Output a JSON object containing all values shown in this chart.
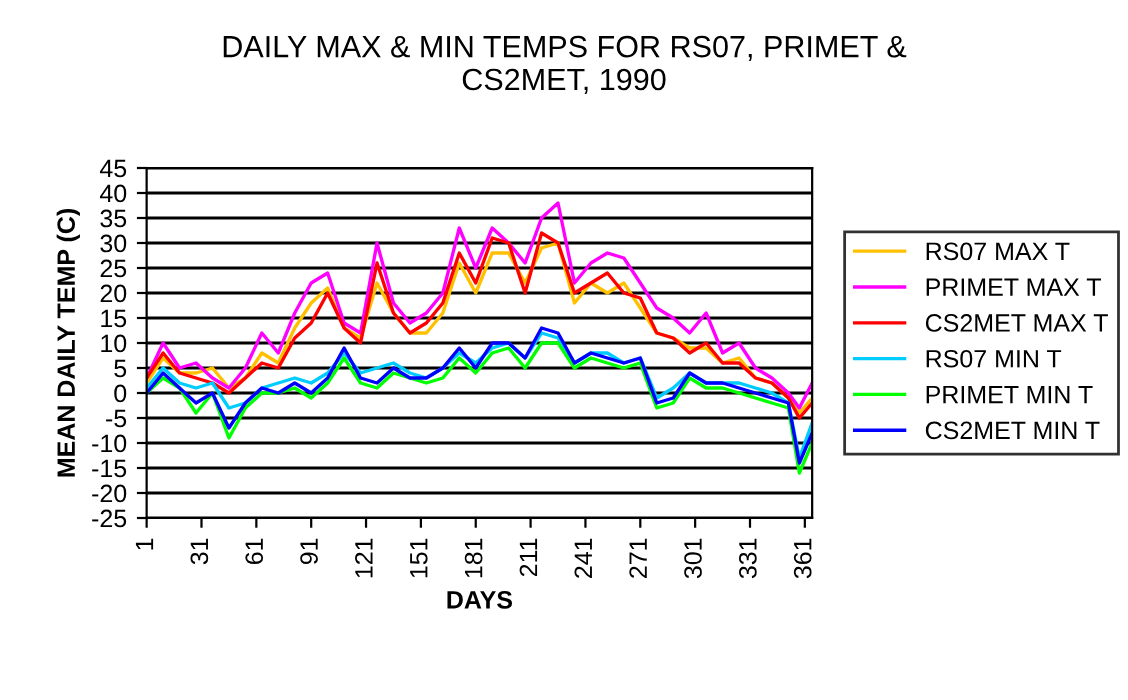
{
  "chart_data": {
    "type": "line",
    "title": "DAILY MAX & MIN TEMPS FOR RS07, PRIMET &\nCS2MET, 1990",
    "xlabel": "DAYS",
    "ylabel": "MEAN DAILY TEMP (C)",
    "x": [
      1,
      10,
      19,
      28,
      37,
      46,
      55,
      64,
      73,
      82,
      91,
      100,
      109,
      118,
      127,
      136,
      145,
      154,
      163,
      172,
      181,
      190,
      199,
      208,
      217,
      226,
      235,
      244,
      253,
      262,
      271,
      280,
      289,
      298,
      307,
      316,
      325,
      334,
      343,
      352,
      358,
      365
    ],
    "series": [
      {
        "name": "RS07 MAX T",
        "color": "#ffc000",
        "values": [
          2,
          7,
          4,
          4,
          5,
          1,
          3,
          8,
          6,
          13,
          18,
          21,
          13,
          11,
          22,
          16,
          12,
          12,
          16,
          26,
          20,
          28,
          28,
          22,
          29,
          30,
          18,
          22,
          20,
          22,
          17,
          12,
          11,
          9,
          9,
          6,
          7,
          3,
          2,
          -1,
          -4,
          -1
        ]
      },
      {
        "name": "PRIMET MAX T",
        "color": "#ff00ff",
        "values": [
          3,
          10,
          5,
          6,
          3,
          1,
          5,
          12,
          8,
          16,
          22,
          24,
          14,
          12,
          30,
          18,
          14,
          16,
          20,
          33,
          25,
          33,
          30,
          26,
          35,
          38,
          22,
          26,
          28,
          27,
          22,
          17,
          15,
          12,
          16,
          8,
          10,
          5,
          3,
          0,
          -3,
          2
        ]
      },
      {
        "name": "CS2MET MAX T",
        "color": "#ff0000",
        "values": [
          3,
          8,
          4,
          3,
          2,
          0,
          3,
          6,
          5,
          11,
          14,
          20,
          13,
          10,
          26,
          16,
          12,
          14,
          18,
          28,
          22,
          31,
          30,
          20,
          32,
          30,
          20,
          22,
          24,
          20,
          19,
          12,
          11,
          8,
          10,
          6,
          6,
          3,
          2,
          -1,
          -5,
          -2
        ]
      },
      {
        "name": "RS07 MIN T",
        "color": "#00ccff",
        "values": [
          1,
          5,
          2,
          1,
          2,
          -3,
          -2,
          1,
          2,
          3,
          2,
          4,
          8,
          4,
          5,
          6,
          4,
          3,
          5,
          8,
          6,
          9,
          10,
          7,
          12,
          11,
          6,
          8,
          8,
          6,
          7,
          -1,
          1,
          4,
          2,
          2,
          2,
          1,
          0,
          -2,
          -13,
          -6
        ]
      },
      {
        "name": "PRIMET MIN T",
        "color": "#00ff00",
        "values": [
          0,
          3,
          1,
          -4,
          0,
          -9,
          -3,
          0,
          0,
          1,
          -1,
          2,
          7,
          2,
          1,
          4,
          3,
          2,
          3,
          7,
          4,
          8,
          9,
          5,
          10,
          10,
          5,
          7,
          6,
          5,
          6,
          -3,
          -2,
          3,
          1,
          1,
          0,
          -1,
          -2,
          -3,
          -16,
          -10
        ]
      },
      {
        "name": "CS2MET MIN T",
        "color": "#0000ff",
        "values": [
          0,
          4,
          1,
          -2,
          0,
          -7,
          -2,
          1,
          0,
          2,
          0,
          3,
          9,
          3,
          2,
          5,
          3,
          3,
          5,
          9,
          5,
          10,
          10,
          7,
          13,
          12,
          6,
          8,
          7,
          6,
          7,
          -2,
          -1,
          4,
          2,
          2,
          1,
          0,
          -1,
          -2,
          -14,
          -8
        ]
      }
    ],
    "xlim": [
      1,
      365
    ],
    "xticks": [
      1,
      31,
      61,
      91,
      121,
      151,
      181,
      211,
      241,
      271,
      301,
      331,
      361
    ],
    "ylim": [
      -25,
      45
    ],
    "yticks": [
      -25,
      -20,
      -15,
      -10,
      -5,
      0,
      5,
      10,
      15,
      20,
      25,
      30,
      35,
      40,
      45
    ],
    "grid": "y",
    "legend": "right",
    "marker": "none",
    "line_style": "solid"
  }
}
